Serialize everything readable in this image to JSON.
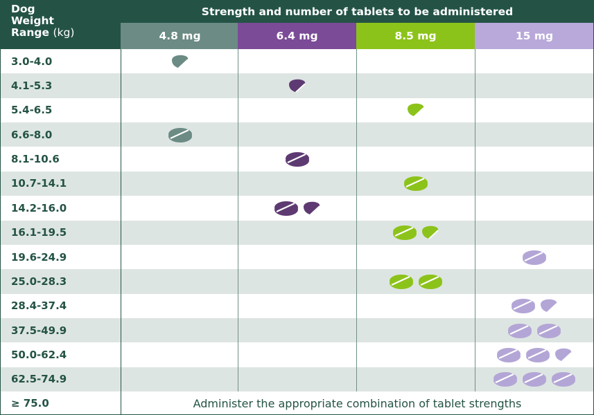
{
  "header": {
    "weight_col_line1": "Dog",
    "weight_col_line2": "Weight",
    "weight_col_line3": "Range",
    "weight_col_unit": "(kg)",
    "title": "Strength and number of tablets to be administered"
  },
  "strengths": [
    {
      "label": "4.8 mg",
      "color": "#6b8b84"
    },
    {
      "label": "6.4 mg",
      "color": "#7b4b97"
    },
    {
      "label": "8.5 mg",
      "color": "#8cc31a"
    },
    {
      "label": "15 mg",
      "color": "#b8a9da"
    }
  ],
  "tablet_colors": [
    "#6b8b84",
    "#5e3a72",
    "#8cc31a",
    "#b3a6d6"
  ],
  "rows": [
    {
      "range": "3.0-4.0",
      "strength_index": 0,
      "tablets": [
        "half"
      ]
    },
    {
      "range": "4.1-5.3",
      "strength_index": 1,
      "tablets": [
        "half"
      ]
    },
    {
      "range": "5.4-6.5",
      "strength_index": 2,
      "tablets": [
        "half"
      ]
    },
    {
      "range": "6.6-8.0",
      "strength_index": 0,
      "tablets": [
        "whole"
      ]
    },
    {
      "range": "8.1-10.6",
      "strength_index": 1,
      "tablets": [
        "whole"
      ]
    },
    {
      "range": "10.7-14.1",
      "strength_index": 2,
      "tablets": [
        "whole"
      ]
    },
    {
      "range": "14.2-16.0",
      "strength_index": 1,
      "tablets": [
        "whole",
        "half"
      ]
    },
    {
      "range": "16.1-19.5",
      "strength_index": 2,
      "tablets": [
        "whole",
        "half"
      ]
    },
    {
      "range": "19.6-24.9",
      "strength_index": 3,
      "tablets": [
        "whole"
      ]
    },
    {
      "range": "25.0-28.3",
      "strength_index": 2,
      "tablets": [
        "whole",
        "whole"
      ]
    },
    {
      "range": "28.4-37.4",
      "strength_index": 3,
      "tablets": [
        "whole",
        "half"
      ]
    },
    {
      "range": "37.5-49.9",
      "strength_index": 3,
      "tablets": [
        "whole",
        "whole"
      ]
    },
    {
      "range": "50.0-62.4",
      "strength_index": 3,
      "tablets": [
        "whole",
        "whole",
        "half"
      ]
    },
    {
      "range": "62.5-74.9",
      "strength_index": 3,
      "tablets": [
        "whole",
        "whole",
        "whole"
      ]
    }
  ],
  "last_row": {
    "range": "≥ 75.0",
    "note": "Administer the appropriate combination of tablet strengths"
  }
}
